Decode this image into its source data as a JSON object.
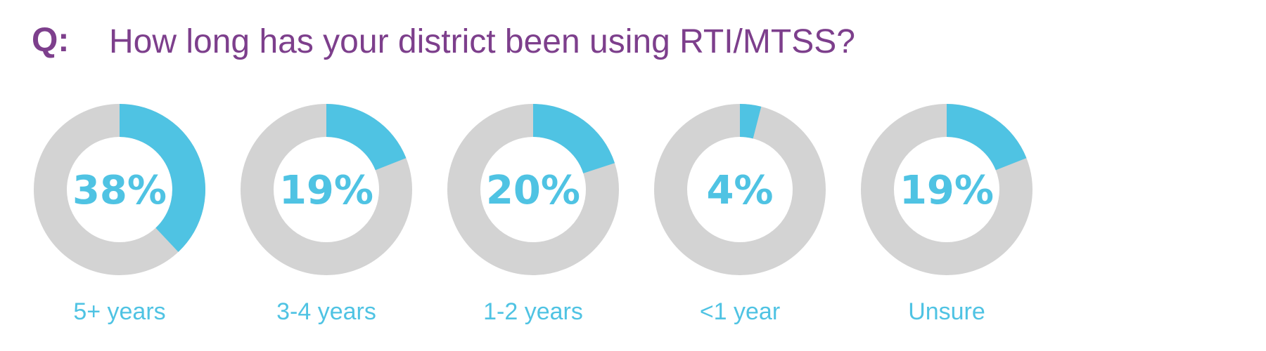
{
  "header": {
    "q_label": "Q:",
    "question": "How long has your district been using RTI/MTSS?"
  },
  "colors": {
    "question": "#7d3f8c",
    "accent": "#4fc3e3",
    "track": "#d3d3d3"
  },
  "chart_data": {
    "type": "pie",
    "subtype": "donut-small-multiples",
    "title": "How long has your district been using RTI/MTSS?",
    "unit": "%",
    "categories": [
      "5+ years",
      "3-4 years",
      "1-2 years",
      "<1 year",
      "Unsure"
    ],
    "values": [
      38,
      19,
      20,
      4,
      19
    ],
    "labels": [
      "38%",
      "19%",
      "20%",
      "4%",
      "19%"
    ]
  }
}
